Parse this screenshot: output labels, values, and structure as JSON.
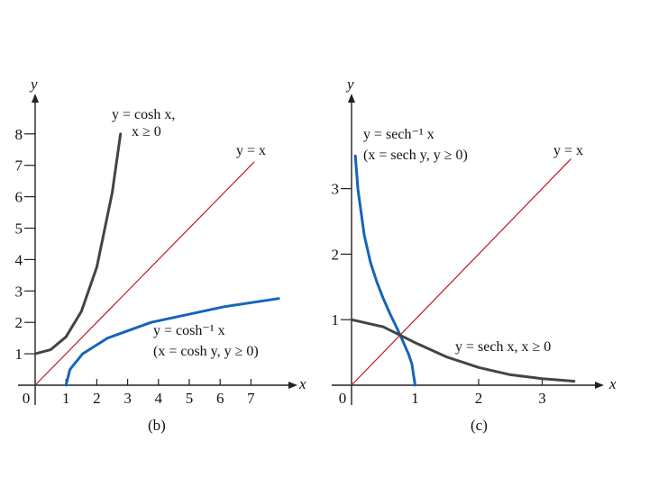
{
  "chart_data": [
    {
      "type": "line",
      "panel_label": "(b)",
      "xlabel": "x",
      "ylabel": "y",
      "x_ticks": [
        "0",
        "1",
        "2",
        "3",
        "4",
        "5",
        "6",
        "7"
      ],
      "y_ticks": [
        "1",
        "2",
        "3",
        "4",
        "5",
        "6",
        "7",
        "8"
      ],
      "xlim": [
        0,
        8.5
      ],
      "ylim": [
        0,
        9.5
      ],
      "grid": false,
      "series": [
        {
          "name": "y = cosh x, x ≥ 0",
          "color": "#444444",
          "x": [
            0,
            0.5,
            1,
            1.5,
            2,
            2.5,
            2.77
          ],
          "y": [
            1,
            1.13,
            1.54,
            2.35,
            3.76,
            6.13,
            8.0
          ]
        },
        {
          "name": "y = x",
          "color": "#c0181c",
          "x": [
            0,
            7.1
          ],
          "y": [
            0,
            7.1
          ]
        },
        {
          "name": "y = cosh⁻¹ x (x = cosh y, y ≥ 0)",
          "color": "#1565b8",
          "x": [
            1,
            1.13,
            1.54,
            2.35,
            3.76,
            6.13,
            7.9
          ],
          "y": [
            0,
            0.5,
            1,
            1.5,
            2,
            2.5,
            2.76
          ]
        }
      ],
      "annotations": {
        "cosh_line1": "y = cosh x,",
        "cosh_line2": "x ≥ 0",
        "identity": "y = x",
        "acosh_line1": "y = cosh⁻¹ x",
        "acosh_line2": "(x = cosh y, y ≥ 0)"
      }
    },
    {
      "type": "line",
      "panel_label": "(c)",
      "xlabel": "x",
      "ylabel": "y",
      "x_ticks": [
        "0",
        "1",
        "2",
        "3"
      ],
      "y_ticks": [
        "1",
        "2",
        "3"
      ],
      "xlim": [
        0,
        4.1
      ],
      "ylim": [
        0,
        4.7
      ],
      "grid": false,
      "series": [
        {
          "name": "y = sech⁻¹ x (x = sech y, y ≥ 0)",
          "color": "#1565b8",
          "x": [
            0.06,
            0.1,
            0.2,
            0.3,
            0.4,
            0.5,
            0.6,
            0.7,
            0.8,
            0.9,
            0.95,
            1.0
          ],
          "y": [
            3.5,
            2.99,
            2.29,
            1.87,
            1.57,
            1.32,
            1.1,
            0.9,
            0.69,
            0.47,
            0.32,
            0
          ]
        },
        {
          "name": "y = x",
          "color": "#c0181c",
          "x": [
            0,
            3.45
          ],
          "y": [
            0,
            3.45
          ]
        },
        {
          "name": "y = sech x, x ≥ 0",
          "color": "#444444",
          "x": [
            0,
            0.5,
            1,
            1.5,
            2,
            2.5,
            3,
            3.5
          ],
          "y": [
            1,
            0.89,
            0.65,
            0.43,
            0.27,
            0.16,
            0.1,
            0.06
          ]
        }
      ],
      "annotations": {
        "asech_line1": "y = sech⁻¹ x",
        "asech_line2": "(x = sech y, y ≥ 0)",
        "identity": "y = x",
        "sech": "y = sech x, x ≥ 0"
      }
    }
  ]
}
